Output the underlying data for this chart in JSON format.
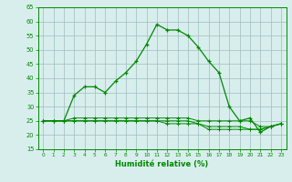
{
  "xlabel": "Humidité relative (%)",
  "background_color": "#d8eeed",
  "grid_color": "#9dbdbd",
  "line_color": "#008800",
  "x": [
    0,
    1,
    2,
    3,
    4,
    5,
    6,
    7,
    8,
    9,
    10,
    11,
    12,
    13,
    14,
    15,
    16,
    17,
    18,
    19,
    20,
    21,
    22,
    23
  ],
  "y_main": [
    25,
    25,
    25,
    34,
    37,
    37,
    35,
    39,
    42,
    46,
    52,
    59,
    57,
    57,
    55,
    51,
    46,
    42,
    30,
    25,
    26,
    21,
    23,
    24
  ],
  "y_min": [
    25,
    25,
    25,
    25,
    25,
    25,
    25,
    25,
    25,
    25,
    25,
    25,
    24,
    24,
    24,
    24,
    22,
    22,
    22,
    22,
    22,
    22,
    23,
    24
  ],
  "y_max": [
    25,
    25,
    25,
    26,
    26,
    26,
    26,
    26,
    26,
    26,
    26,
    26,
    26,
    26,
    26,
    25,
    25,
    25,
    25,
    25,
    25,
    23,
    23,
    24
  ],
  "y_mid": [
    25,
    25,
    25,
    25,
    25,
    25,
    25,
    25,
    25,
    25,
    25,
    25,
    25,
    25,
    25,
    24,
    23,
    23,
    23,
    23,
    22,
    22,
    23,
    24
  ],
  "ylim": [
    15,
    65
  ],
  "yticks": [
    15,
    20,
    25,
    30,
    35,
    40,
    45,
    50,
    55,
    60,
    65
  ],
  "xlim": [
    -0.5,
    23.5
  ],
  "xticks": [
    0,
    1,
    2,
    3,
    4,
    5,
    6,
    7,
    8,
    9,
    10,
    11,
    12,
    13,
    14,
    15,
    16,
    17,
    18,
    19,
    20,
    21,
    22,
    23
  ]
}
